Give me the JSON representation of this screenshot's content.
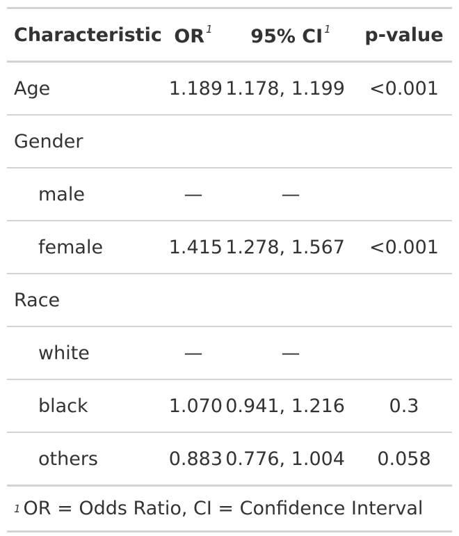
{
  "header": {
    "characteristic": "Characteristic",
    "or": "OR",
    "or_note": "1",
    "ci": "95% CI",
    "ci_note": "1",
    "pvalue": "p-value"
  },
  "rows": [
    {
      "label": "Age",
      "or": "1.189",
      "ci": "1.178, 1.199",
      "p": "<0.001"
    },
    {
      "label": "Gender",
      "or": "",
      "ci": "",
      "p": ""
    },
    {
      "label": "male",
      "or": "—",
      "ci": "—",
      "p": ""
    },
    {
      "label": "female",
      "or": "1.415",
      "ci": "1.278, 1.567",
      "p": "<0.001"
    },
    {
      "label": "Race",
      "or": "",
      "ci": "",
      "p": ""
    },
    {
      "label": "white",
      "or": "—",
      "ci": "—",
      "p": ""
    },
    {
      "label": "black",
      "or": "1.070",
      "ci": "0.941, 1.216",
      "p": "0.3"
    },
    {
      "label": "others",
      "or": "0.883",
      "ci": "0.776, 1.004",
      "p": "0.058"
    }
  ],
  "footnote": {
    "mark": "1",
    "text": "OR = Odds Ratio, CI = Confidence Interval"
  }
}
